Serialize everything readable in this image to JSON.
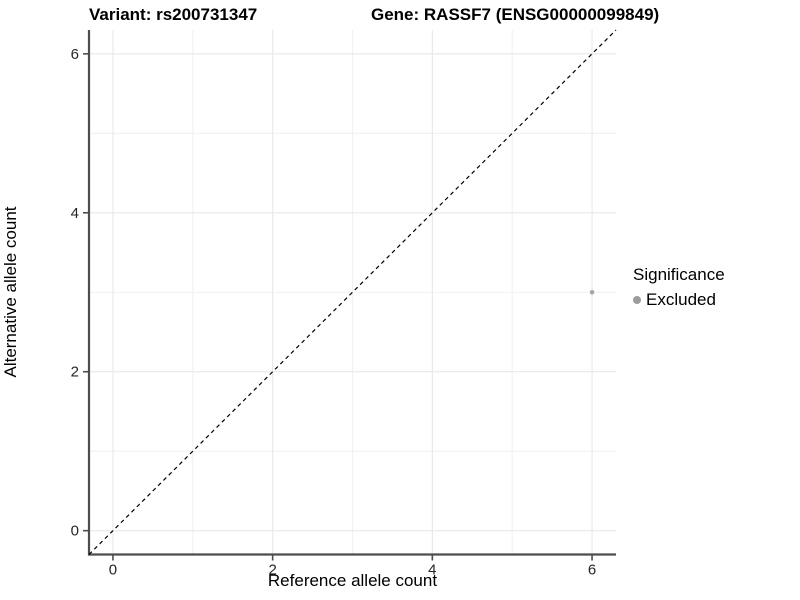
{
  "chart_data": {
    "type": "scatter",
    "titles": {
      "left": "Variant: rs200731347",
      "right": "Gene: RASSF7 (ENSG00000099849)"
    },
    "xlabel": "Reference allele count",
    "ylabel": "Alternative allele count",
    "xlim": [
      -0.3,
      6.3
    ],
    "ylim": [
      -0.3,
      6.3
    ],
    "xticks": [
      0,
      2,
      4,
      6
    ],
    "yticks": [
      0,
      2,
      4,
      6
    ],
    "xminor": [
      1,
      3,
      5
    ],
    "yminor": [
      1,
      3,
      5
    ],
    "grid": true,
    "reference_line": {
      "type": "identity",
      "slope": 1,
      "intercept": 0,
      "style": "dashed"
    },
    "series": [
      {
        "name": "Excluded",
        "points": [
          {
            "x": 6,
            "y": 3
          }
        ]
      }
    ],
    "legend": {
      "title": "Significance",
      "position": "right",
      "items": [
        {
          "label": "Excluded",
          "swatch": "circle"
        }
      ]
    }
  },
  "colors": {
    "background": "#ffffff",
    "grid_major": "#e8e8e8",
    "grid_minor": "#f1f1f1",
    "axis_line": "#4d4d4d",
    "tick_mark": "#4d4d4d",
    "axis_text": "#262626",
    "title_text": "#000000",
    "reference_line": "#000000",
    "point_excluded": "#a6a6a6",
    "legend_swatch": "#9c9c9c"
  }
}
